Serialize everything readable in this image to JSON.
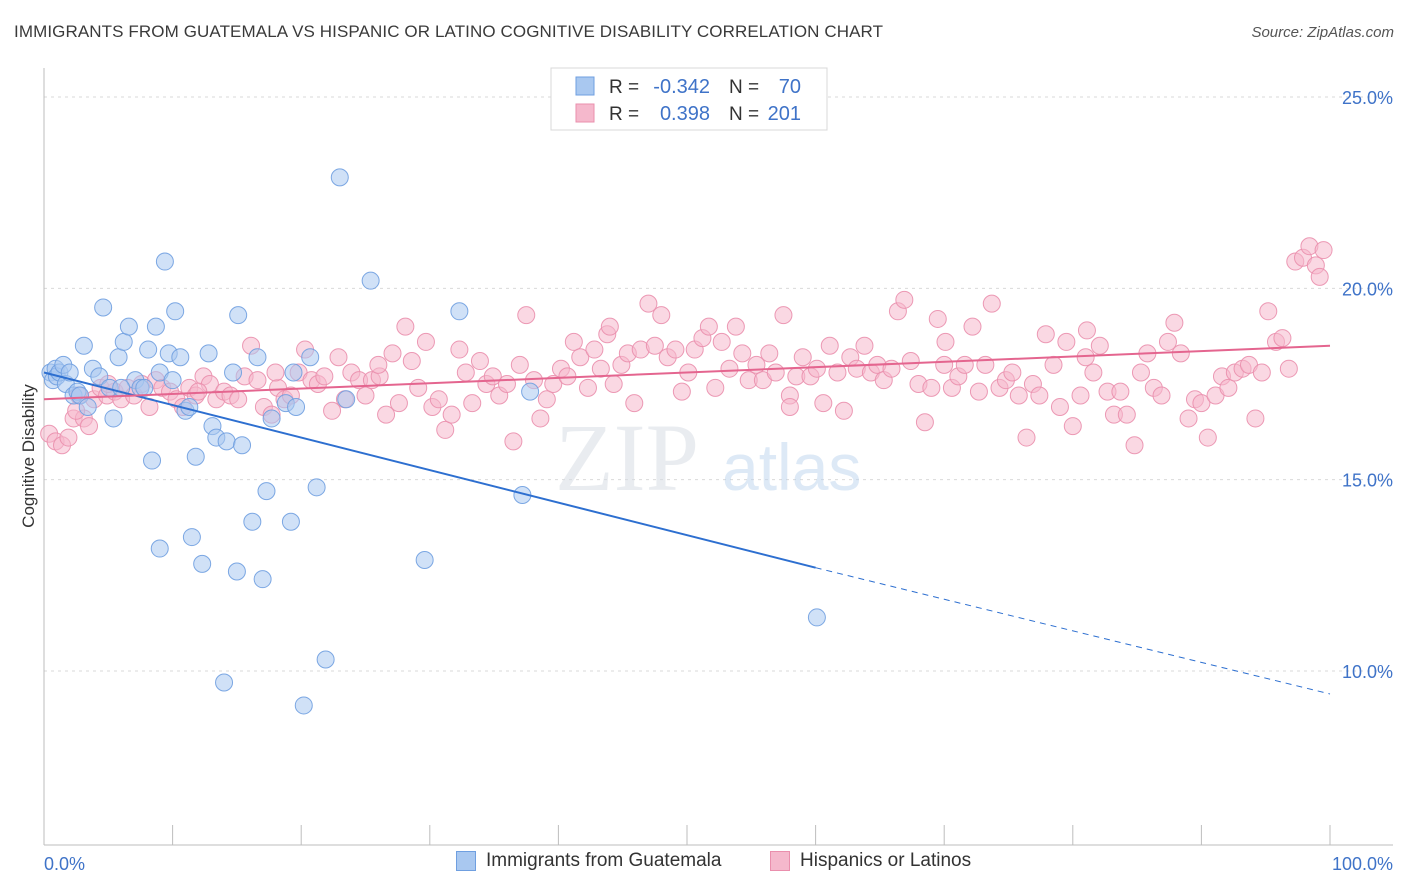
{
  "header": {
    "title": "IMMIGRANTS FROM GUATEMALA VS HISPANIC OR LATINO COGNITIVE DISABILITY CORRELATION CHART",
    "source": "Source: ZipAtlas.com"
  },
  "watermark": {
    "zip": "ZIP",
    "atlas": "atlas"
  },
  "legend": {
    "rows": [
      {
        "r_label": "R =",
        "r_value": "-0.342",
        "n_label": "N =",
        "n_value": "70"
      },
      {
        "r_label": "R =",
        "r_value": "0.398",
        "n_label": "N =",
        "n_value": "201"
      }
    ]
  },
  "bottom_legend": {
    "items": [
      {
        "label": "Immigrants from Guatemala"
      },
      {
        "label": "Hispanics or Latinos"
      }
    ]
  },
  "colors": {
    "blue_fill": "#a9c8f0",
    "blue_stroke": "#6f9fe0",
    "blue_line": "#2d6fd0",
    "pink_fill": "#f5b8cc",
    "pink_stroke": "#ea8fad",
    "pink_line": "#e4658f",
    "axis_text": "#3f73c8",
    "grid": "#d9d9d9"
  },
  "chart_data": {
    "type": "scatter",
    "title": "IMMIGRANTS FROM GUATEMALA VS HISPANIC OR LATINO COGNITIVE DISABILITY CORRELATION CHART",
    "xlabel": "",
    "ylabel": "Cognitive Disability",
    "xlim": [
      0,
      100
    ],
    "ylim": [
      5,
      25.5
    ],
    "x_tick_labels": [
      "0.0%",
      "100.0%"
    ],
    "y_ticks": [
      10,
      15,
      20,
      25
    ],
    "y_tick_labels": [
      "10.0%",
      "15.0%",
      "20.0%",
      "25.0%"
    ],
    "grid": true,
    "legend_position": "top-center",
    "series": [
      {
        "name": "Immigrants from Guatemala",
        "r": -0.342,
        "n": 70,
        "trend": {
          "x0": 0,
          "y0": 17.8,
          "x1": 60,
          "y1": 12.7,
          "dashed_to_x": 100,
          "dashed_to_y": 9.4
        },
        "points": [
          [
            0.5,
            17.8
          ],
          [
            0.7,
            17.6
          ],
          [
            0.9,
            17.9
          ],
          [
            1.0,
            17.7
          ],
          [
            1.2,
            17.8
          ],
          [
            1.5,
            18.0
          ],
          [
            1.7,
            17.5
          ],
          [
            2.0,
            17.8
          ],
          [
            2.3,
            17.2
          ],
          [
            2.6,
            17.3
          ],
          [
            2.8,
            17.2
          ],
          [
            3.1,
            18.5
          ],
          [
            3.4,
            16.9
          ],
          [
            3.8,
            17.9
          ],
          [
            4.3,
            17.7
          ],
          [
            4.6,
            19.5
          ],
          [
            5.1,
            17.4
          ],
          [
            5.4,
            16.6
          ],
          [
            5.8,
            18.2
          ],
          [
            6.2,
            18.6
          ],
          [
            6.6,
            19.0
          ],
          [
            7.1,
            17.6
          ],
          [
            7.5,
            17.4
          ],
          [
            7.8,
            17.4
          ],
          [
            8.1,
            18.4
          ],
          [
            8.4,
            15.5
          ],
          [
            8.7,
            19.0
          ],
          [
            9.0,
            17.8
          ],
          [
            9.4,
            20.7
          ],
          [
            9.7,
            18.3
          ],
          [
            10.0,
            17.6
          ],
          [
            10.2,
            19.4
          ],
          [
            10.6,
            18.2
          ],
          [
            11.0,
            16.8
          ],
          [
            11.3,
            16.9
          ],
          [
            11.8,
            15.6
          ],
          [
            12.3,
            12.8
          ],
          [
            12.8,
            18.3
          ],
          [
            13.1,
            16.4
          ],
          [
            13.4,
            16.1
          ],
          [
            14.2,
            16.0
          ],
          [
            14.7,
            17.8
          ],
          [
            15.1,
            19.3
          ],
          [
            15.4,
            15.9
          ],
          [
            16.2,
            13.9
          ],
          [
            16.6,
            18.2
          ],
          [
            17.0,
            12.4
          ],
          [
            17.3,
            14.7
          ],
          [
            17.7,
            16.6
          ],
          [
            18.8,
            17.0
          ],
          [
            19.2,
            13.9
          ],
          [
            19.6,
            16.9
          ],
          [
            20.2,
            9.1
          ],
          [
            20.7,
            18.2
          ],
          [
            21.2,
            14.8
          ],
          [
            21.9,
            10.3
          ],
          [
            23.0,
            22.9
          ],
          [
            23.5,
            17.1
          ],
          [
            25.4,
            20.2
          ],
          [
            29.6,
            12.9
          ],
          [
            32.3,
            19.4
          ],
          [
            37.2,
            14.6
          ],
          [
            37.8,
            17.3
          ],
          [
            60.1,
            11.4
          ],
          [
            11.5,
            13.5
          ],
          [
            9.0,
            13.2
          ],
          [
            14.0,
            9.7
          ],
          [
            15.0,
            12.6
          ],
          [
            19.4,
            17.8
          ],
          [
            6.0,
            17.4
          ]
        ]
      },
      {
        "name": "Hispanics or Latinos",
        "r": 0.398,
        "n": 201,
        "trend": {
          "x0": 0,
          "y0": 17.1,
          "x1": 100,
          "y1": 18.5
        },
        "points": [
          [
            0.4,
            16.2
          ],
          [
            0.9,
            16.0
          ],
          [
            1.4,
            15.9
          ],
          [
            1.9,
            16.1
          ],
          [
            2.3,
            16.6
          ],
          [
            2.7,
            17.2
          ],
          [
            3.1,
            16.6
          ],
          [
            3.5,
            16.4
          ],
          [
            3.9,
            17.1
          ],
          [
            4.4,
            17.4
          ],
          [
            4.9,
            17.2
          ],
          [
            5.5,
            17.3
          ],
          [
            6.0,
            17.1
          ],
          [
            6.5,
            17.4
          ],
          [
            7.0,
            17.2
          ],
          [
            7.6,
            17.5
          ],
          [
            8.2,
            16.9
          ],
          [
            8.7,
            17.6
          ],
          [
            9.2,
            17.4
          ],
          [
            9.8,
            17.3
          ],
          [
            10.3,
            17.1
          ],
          [
            10.8,
            16.9
          ],
          [
            11.3,
            17.4
          ],
          [
            11.8,
            17.2
          ],
          [
            12.4,
            17.7
          ],
          [
            12.9,
            17.5
          ],
          [
            13.4,
            17.1
          ],
          [
            14.0,
            17.3
          ],
          [
            14.5,
            17.2
          ],
          [
            15.1,
            17.1
          ],
          [
            15.6,
            17.7
          ],
          [
            16.1,
            18.5
          ],
          [
            16.6,
            17.6
          ],
          [
            17.1,
            16.9
          ],
          [
            17.7,
            16.7
          ],
          [
            18.2,
            17.4
          ],
          [
            18.7,
            17.1
          ],
          [
            19.2,
            17.2
          ],
          [
            19.8,
            17.8
          ],
          [
            20.3,
            18.4
          ],
          [
            20.8,
            17.6
          ],
          [
            21.3,
            17.5
          ],
          [
            21.8,
            17.7
          ],
          [
            22.4,
            16.8
          ],
          [
            22.9,
            18.2
          ],
          [
            23.4,
            17.1
          ],
          [
            23.9,
            17.8
          ],
          [
            24.5,
            17.6
          ],
          [
            25.0,
            17.2
          ],
          [
            25.5,
            17.6
          ],
          [
            26.1,
            17.7
          ],
          [
            26.6,
            16.7
          ],
          [
            27.1,
            18.3
          ],
          [
            27.6,
            17.0
          ],
          [
            28.1,
            19.0
          ],
          [
            28.6,
            18.1
          ],
          [
            29.1,
            17.4
          ],
          [
            29.7,
            18.6
          ],
          [
            30.2,
            16.9
          ],
          [
            30.7,
            17.1
          ],
          [
            31.2,
            16.3
          ],
          [
            31.7,
            16.7
          ],
          [
            32.3,
            18.4
          ],
          [
            32.8,
            17.8
          ],
          [
            33.3,
            17.0
          ],
          [
            33.9,
            18.1
          ],
          [
            34.4,
            17.5
          ],
          [
            34.9,
            17.7
          ],
          [
            35.4,
            17.2
          ],
          [
            36.0,
            17.5
          ],
          [
            36.5,
            16.0
          ],
          [
            37.0,
            18.0
          ],
          [
            37.5,
            19.3
          ],
          [
            38.1,
            17.6
          ],
          [
            38.6,
            16.6
          ],
          [
            39.1,
            17.1
          ],
          [
            39.6,
            17.5
          ],
          [
            40.2,
            17.9
          ],
          [
            40.7,
            17.7
          ],
          [
            41.2,
            18.6
          ],
          [
            41.7,
            18.2
          ],
          [
            42.3,
            17.4
          ],
          [
            42.8,
            18.4
          ],
          [
            43.3,
            17.9
          ],
          [
            43.8,
            18.8
          ],
          [
            44.3,
            17.5
          ],
          [
            44.9,
            18.0
          ],
          [
            45.4,
            18.3
          ],
          [
            45.9,
            17.0
          ],
          [
            46.4,
            18.4
          ],
          [
            47.0,
            19.6
          ],
          [
            47.5,
            18.5
          ],
          [
            48.0,
            19.3
          ],
          [
            48.5,
            18.2
          ],
          [
            49.1,
            18.4
          ],
          [
            49.6,
            17.3
          ],
          [
            50.1,
            17.8
          ],
          [
            50.6,
            18.4
          ],
          [
            51.2,
            18.7
          ],
          [
            51.7,
            19.0
          ],
          [
            52.2,
            17.4
          ],
          [
            52.7,
            18.6
          ],
          [
            53.3,
            17.9
          ],
          [
            53.8,
            19.0
          ],
          [
            54.3,
            18.3
          ],
          [
            54.8,
            17.6
          ],
          [
            55.4,
            18.0
          ],
          [
            55.9,
            17.6
          ],
          [
            56.4,
            18.3
          ],
          [
            56.9,
            17.8
          ],
          [
            57.5,
            19.3
          ],
          [
            58.0,
            17.2
          ],
          [
            58.5,
            17.7
          ],
          [
            59.0,
            18.2
          ],
          [
            59.6,
            17.7
          ],
          [
            60.1,
            17.9
          ],
          [
            60.6,
            17.0
          ],
          [
            61.1,
            18.5
          ],
          [
            61.7,
            17.8
          ],
          [
            62.2,
            16.8
          ],
          [
            62.7,
            18.2
          ],
          [
            63.2,
            17.9
          ],
          [
            63.8,
            18.5
          ],
          [
            64.3,
            17.8
          ],
          [
            64.8,
            18.0
          ],
          [
            65.3,
            17.6
          ],
          [
            65.9,
            17.9
          ],
          [
            66.4,
            19.4
          ],
          [
            66.9,
            19.7
          ],
          [
            67.4,
            18.1
          ],
          [
            68.0,
            17.5
          ],
          [
            68.5,
            16.5
          ],
          [
            69.0,
            17.4
          ],
          [
            69.5,
            19.2
          ],
          [
            70.1,
            18.6
          ],
          [
            70.6,
            17.4
          ],
          [
            71.1,
            17.7
          ],
          [
            71.6,
            18.0
          ],
          [
            72.2,
            19.0
          ],
          [
            72.7,
            17.3
          ],
          [
            73.2,
            18.0
          ],
          [
            73.7,
            19.6
          ],
          [
            74.3,
            17.4
          ],
          [
            74.8,
            17.6
          ],
          [
            75.3,
            17.8
          ],
          [
            75.8,
            17.2
          ],
          [
            76.4,
            16.1
          ],
          [
            76.9,
            17.5
          ],
          [
            77.4,
            17.2
          ],
          [
            77.9,
            18.8
          ],
          [
            78.5,
            18.0
          ],
          [
            79.0,
            16.9
          ],
          [
            79.5,
            18.6
          ],
          [
            80.0,
            16.4
          ],
          [
            80.6,
            17.2
          ],
          [
            81.1,
            18.9
          ],
          [
            81.6,
            17.8
          ],
          [
            82.1,
            18.5
          ],
          [
            82.7,
            17.3
          ],
          [
            83.2,
            16.7
          ],
          [
            83.7,
            17.3
          ],
          [
            84.2,
            16.7
          ],
          [
            84.8,
            15.9
          ],
          [
            85.3,
            17.8
          ],
          [
            85.8,
            18.3
          ],
          [
            86.3,
            17.4
          ],
          [
            86.9,
            17.2
          ],
          [
            87.4,
            18.6
          ],
          [
            87.9,
            19.1
          ],
          [
            88.4,
            18.3
          ],
          [
            89.0,
            16.6
          ],
          [
            89.5,
            17.1
          ],
          [
            90.0,
            17.0
          ],
          [
            90.5,
            16.1
          ],
          [
            91.1,
            17.2
          ],
          [
            91.6,
            17.7
          ],
          [
            92.1,
            17.4
          ],
          [
            92.6,
            17.8
          ],
          [
            93.2,
            17.9
          ],
          [
            93.7,
            18.0
          ],
          [
            94.2,
            16.6
          ],
          [
            94.7,
            17.8
          ],
          [
            95.2,
            19.4
          ],
          [
            95.8,
            18.6
          ],
          [
            96.3,
            18.7
          ],
          [
            96.8,
            17.9
          ],
          [
            97.3,
            20.7
          ],
          [
            97.9,
            20.8
          ],
          [
            98.4,
            21.1
          ],
          [
            98.9,
            20.6
          ],
          [
            99.2,
            20.3
          ],
          [
            99.5,
            21.0
          ],
          [
            2.5,
            16.8
          ],
          [
            5.0,
            17.5
          ],
          [
            12.0,
            17.3
          ],
          [
            18.0,
            17.8
          ],
          [
            26.0,
            18.0
          ],
          [
            44.0,
            19.0
          ],
          [
            58.0,
            16.9
          ],
          [
            70.0,
            18.0
          ],
          [
            81.0,
            18.2
          ]
        ]
      }
    ]
  }
}
